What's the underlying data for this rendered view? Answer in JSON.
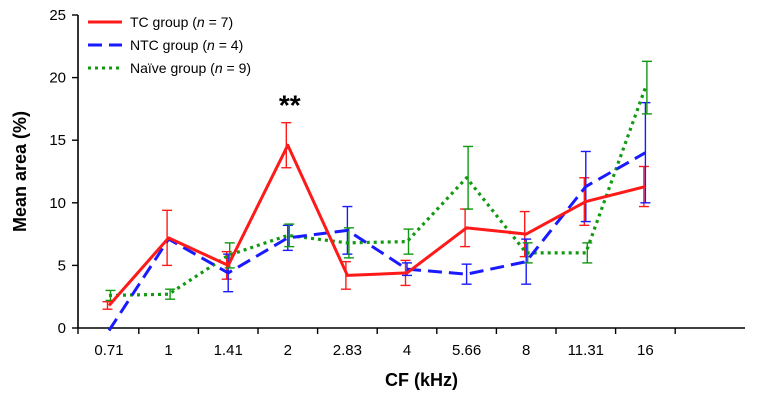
{
  "chart_data": {
    "type": "line",
    "xlabel": "CF (kHz)",
    "ylabel": "Mean area (%)",
    "categories": [
      "0.71",
      "1",
      "1.41",
      "2",
      "2.83",
      "4",
      "5.66",
      "8",
      "11.31",
      "16"
    ],
    "ylim": [
      0,
      25
    ],
    "yticks": [
      "0",
      "5",
      "10",
      "15",
      "20",
      "25"
    ],
    "grid": false,
    "legend_position": "top-left",
    "annotations": [
      {
        "text": "**",
        "category": "2",
        "y": 18.5
      }
    ],
    "series": [
      {
        "legend_prefix": "TC group (",
        "legend_n_symbol": "n",
        "legend_suffix": " = 7)",
        "color": "#ff1a1a",
        "dash": "solid",
        "values": [
          1.8,
          7.2,
          5.0,
          14.6,
          4.2,
          4.4,
          8.0,
          7.5,
          10.1,
          11.3
        ],
        "err": [
          0.3,
          2.2,
          1.1,
          1.8,
          1.1,
          1.0,
          1.5,
          1.8,
          1.9,
          1.6
        ]
      },
      {
        "legend_prefix": "NTC group (",
        "legend_n_symbol": "n",
        "legend_suffix": " = 4)",
        "color": "#1a1aff",
        "dash": "dashed",
        "values": [
          -0.2,
          7.1,
          4.4,
          7.2,
          7.8,
          4.7,
          4.3,
          5.3,
          11.3,
          14.0
        ],
        "err": [
          0,
          0,
          1.5,
          1.0,
          1.9,
          0.5,
          0.8,
          1.8,
          2.8,
          4.0
        ]
      },
      {
        "legend_prefix": "Naïve group (",
        "legend_n_symbol": "n",
        "legend_suffix": " = 9)",
        "color": "#119911",
        "dash": "dotted",
        "values": [
          2.6,
          2.7,
          5.8,
          7.4,
          6.8,
          6.9,
          12.0,
          6.0,
          6.0,
          19.2
        ],
        "err": [
          0.4,
          0.4,
          1.0,
          0.9,
          1.2,
          1.0,
          2.5,
          0.8,
          0.8,
          2.1
        ]
      }
    ]
  }
}
